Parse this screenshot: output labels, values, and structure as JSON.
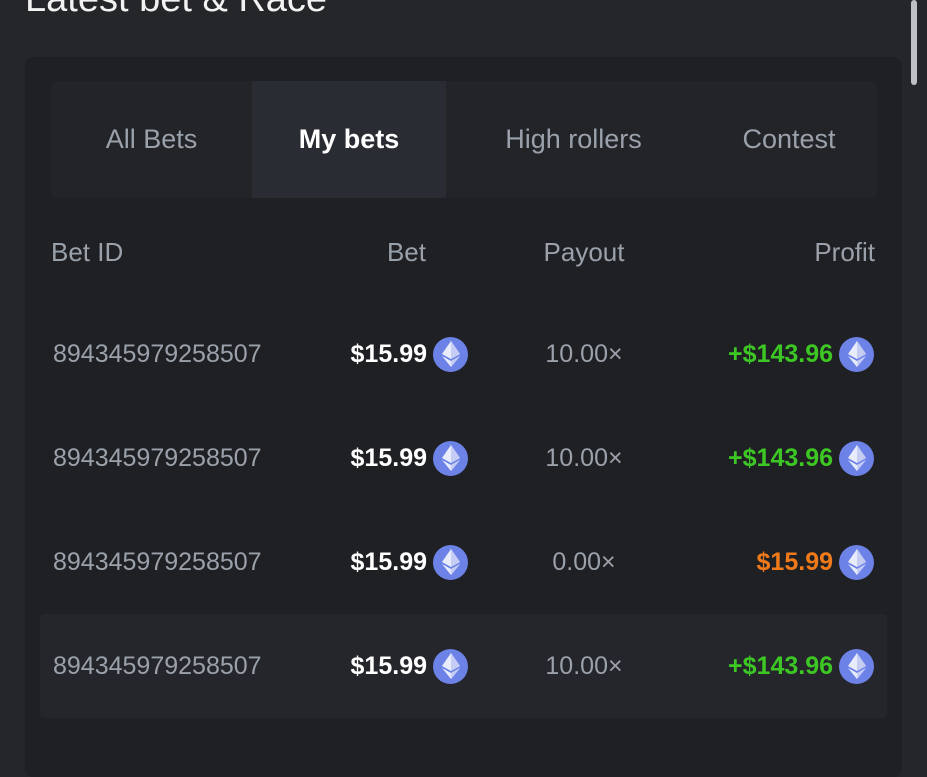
{
  "page": {
    "title": "Latest bet & Race"
  },
  "tabs": [
    {
      "label": "All Bets",
      "active": false
    },
    {
      "label": "My bets",
      "active": true
    },
    {
      "label": "High rollers",
      "active": false
    },
    {
      "label": "Contest",
      "active": false
    }
  ],
  "table": {
    "headers": {
      "bet_id": "Bet ID",
      "bet": "Bet",
      "payout": "Payout",
      "profit": "Profit"
    },
    "rows": [
      {
        "bet_id": "894345979258507",
        "bet": "$15.99",
        "payout": "10.00×",
        "profit": "+$143.96",
        "profit_color": "#3dc724",
        "currency_icon": "ethereum-icon"
      },
      {
        "bet_id": "894345979258507",
        "bet": "$15.99",
        "payout": "10.00×",
        "profit": "+$143.96",
        "profit_color": "#3dc724",
        "currency_icon": "ethereum-icon"
      },
      {
        "bet_id": "894345979258507",
        "bet": "$15.99",
        "payout": "0.00×",
        "profit": "$15.99",
        "profit_color": "#f07a1a",
        "currency_icon": "ethereum-icon"
      },
      {
        "bet_id": "894345979258507",
        "bet": "$15.99",
        "payout": "10.00×",
        "profit": "+$143.96",
        "profit_color": "#3dc724",
        "currency_icon": "ethereum-icon"
      }
    ]
  },
  "colors": {
    "accent_eth": "#6c82e6",
    "win": "#3dc724",
    "loss": "#f07a1a"
  }
}
